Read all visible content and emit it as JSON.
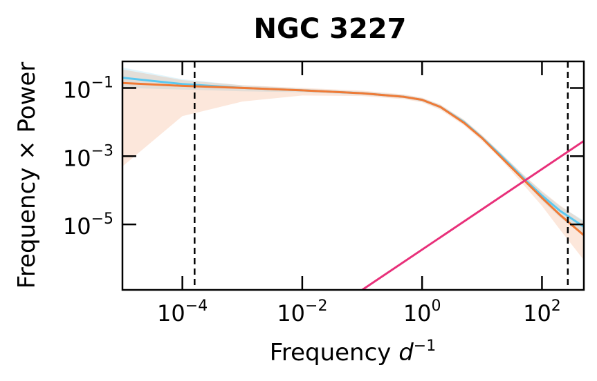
{
  "chart_data": {
    "type": "line",
    "title": "NGC 3227",
    "xlabel": "Frequency d^-1",
    "xlabel_parts": {
      "text": "Frequency ",
      "var": "d",
      "sup": "−1"
    },
    "ylabel": "Frequency × Power",
    "x_scale": "log",
    "y_scale": "log",
    "xlim": [
      1e-05,
      500
    ],
    "ylim": [
      1.2e-07,
      0.6
    ],
    "grid": false,
    "legend": "none",
    "x_ticks": [
      {
        "value": 0.0001,
        "base": "10",
        "exp": "−4"
      },
      {
        "value": 0.01,
        "base": "10",
        "exp": "−2"
      },
      {
        "value": 1,
        "base": "10",
        "exp": "0"
      },
      {
        "value": 100,
        "base": "10",
        "exp": "2"
      }
    ],
    "y_ticks": [
      {
        "value": 0.1,
        "base": "10",
        "exp": "−1"
      },
      {
        "value": 0.001,
        "base": "10",
        "exp": "−3"
      },
      {
        "value": 1e-05,
        "base": "10",
        "exp": "−5"
      }
    ],
    "vlines": [
      {
        "x": 0.00016,
        "style": "dashed",
        "color": "#000000"
      },
      {
        "x": 270,
        "style": "dashed",
        "color": "#000000"
      }
    ],
    "series": [
      {
        "color": "#5bc8f0",
        "x": [
          1e-05,
          0.0001,
          0.001,
          0.01,
          0.1,
          0.5,
          1,
          2,
          5,
          10,
          20,
          50,
          100,
          200,
          500
        ],
        "y": [
          0.2,
          0.13,
          0.1,
          0.085,
          0.07,
          0.055,
          0.045,
          0.028,
          0.01,
          0.0035,
          0.0011,
          0.00022,
          7e-05,
          2.5e-05,
          8.5e-06
        ]
      },
      {
        "color": "#f07a35",
        "x": [
          1e-05,
          0.0001,
          0.001,
          0.01,
          0.1,
          0.5,
          1,
          2,
          5,
          10,
          20,
          50,
          100,
          200,
          500
        ],
        "y": [
          0.14,
          0.115,
          0.1,
          0.085,
          0.07,
          0.055,
          0.045,
          0.028,
          0.0095,
          0.0034,
          0.001,
          0.0002,
          6e-05,
          1.9e-05,
          4.8e-06
        ]
      },
      {
        "color": "#e8307a",
        "x": [
          0.1,
          500
        ],
        "y": [
          1.2e-07,
          0.0028
        ]
      }
    ],
    "bands": [
      {
        "color": "#5bc8f0",
        "x": [
          1e-05,
          0.0001,
          0.001,
          0.01,
          0.1,
          0.5,
          1,
          2,
          5,
          10,
          20,
          50,
          100,
          200,
          500
        ],
        "lower": [
          0.1,
          0.09,
          0.08,
          0.075,
          0.063,
          0.05,
          0.04,
          0.025,
          0.009,
          0.0031,
          0.00095,
          0.00018,
          5e-05,
          1.6e-05,
          4.5e-06
        ],
        "upper": [
          0.4,
          0.18,
          0.12,
          0.095,
          0.078,
          0.062,
          0.05,
          0.032,
          0.0115,
          0.004,
          0.0013,
          0.00027,
          9e-05,
          3.4e-05,
          1.3e-05
        ]
      },
      {
        "color": "#f07a35",
        "x": [
          1e-05,
          0.0001,
          0.001,
          0.01,
          0.1,
          0.5,
          1,
          2,
          5,
          10,
          20,
          50,
          100,
          200,
          500
        ],
        "lower": [
          0.0005,
          0.015,
          0.04,
          0.06,
          0.058,
          0.047,
          0.038,
          0.023,
          0.008,
          0.0028,
          0.00085,
          0.00014,
          3.5e-05,
          7e-06,
          9e-07
        ],
        "upper": [
          0.35,
          0.17,
          0.12,
          0.1,
          0.083,
          0.065,
          0.052,
          0.033,
          0.0118,
          0.0042,
          0.0013,
          0.00028,
          9.5e-05,
          3.6e-05,
          1.2e-05
        ]
      }
    ]
  }
}
